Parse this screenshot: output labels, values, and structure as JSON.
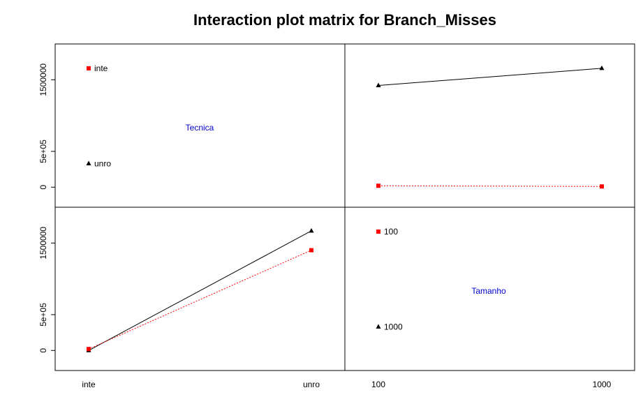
{
  "chart_data": {
    "type": "line",
    "title": "Interaction plot matrix for Branch_Misses",
    "y_ticks": [
      {
        "value": 0,
        "label": "0"
      },
      {
        "value": 500000,
        "label": "5e+05"
      },
      {
        "value": 1500000,
        "label": "1500000"
      }
    ],
    "ylim": [
      -280000,
      2000000
    ],
    "colors": {
      "series_a": "#ff0000",
      "series_b": "#000000",
      "var_name": "#0000cc"
    },
    "panels": {
      "diag_tecnica": {
        "variable": "Tecnica",
        "levels": [
          {
            "label": "inte",
            "value": 1660000,
            "marker": "square",
            "color": "#ff0000"
          },
          {
            "label": "unro",
            "value": 330000,
            "marker": "triangle",
            "color": "#000000"
          }
        ]
      },
      "diag_tamanho": {
        "variable": "Tamanho",
        "levels": [
          {
            "label": "100",
            "value": 1660000,
            "marker": "square",
            "color": "#ff0000"
          },
          {
            "label": "1000",
            "value": 330000,
            "marker": "triangle",
            "color": "#000000"
          }
        ]
      },
      "tamanho_by_tecnica": {
        "categories": [
          "100",
          "1000"
        ],
        "series": [
          {
            "values": [
              1420000,
              1660000
            ],
            "marker": "triangle",
            "color": "#000000",
            "dash": "solid"
          },
          {
            "values": [
              20000,
              10000
            ],
            "marker": "square",
            "color": "#ff0000",
            "dash": "dotted"
          }
        ]
      },
      "tecnica_by_tamanho": {
        "categories": [
          "inte",
          "unro"
        ],
        "series": [
          {
            "values": [
              0,
              1670000
            ],
            "marker": "triangle",
            "color": "#000000",
            "dash": "solid"
          },
          {
            "values": [
              20000,
              1400000
            ],
            "marker": "square",
            "color": "#ff0000",
            "dash": "dotted"
          }
        ]
      }
    },
    "x_axes": {
      "left": {
        "ticks": [
          "inte",
          "unro"
        ]
      },
      "right": {
        "ticks": [
          "100",
          "1000"
        ]
      }
    }
  }
}
